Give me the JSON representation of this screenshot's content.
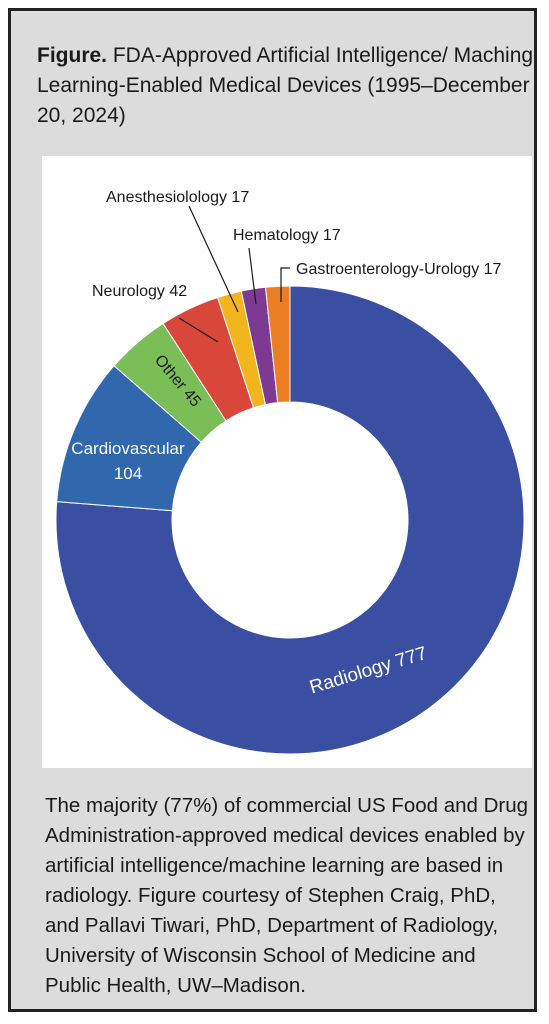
{
  "figure": {
    "prefix": "Figure.",
    "title": "FDA-Approved Artificial Intelligence/ Maching Learning-Enabled Medical Devices (1995–December 20, 2024)"
  },
  "chart_data": {
    "type": "pie",
    "donut": true,
    "colors": {
      "Radiology": "#3a4fa2",
      "Cardiovascular": "#3067ad",
      "Other": "#7bbd57",
      "Neurology": "#d9473b",
      "Anesthesiolology": "#f2b51e",
      "Hematology": "#7e3a93",
      "Gastroenterology-Urology": "#eb7e23"
    },
    "slices": [
      {
        "label": "Radiology",
        "value": 777,
        "text": "Radiology 777"
      },
      {
        "label": "Cardiovascular",
        "value": 104,
        "text": "Cardiovascular",
        "text2": "104"
      },
      {
        "label": "Other",
        "value": 45,
        "text": "Other 45"
      },
      {
        "label": "Neurology",
        "value": 42,
        "text": "Neurology 42"
      },
      {
        "label": "Anesthesiolology",
        "value": 17,
        "text": "Anesthesiolology 17"
      },
      {
        "label": "Hematology",
        "value": 17,
        "text": "Hematology 17"
      },
      {
        "label": "Gastroenterology-Urology",
        "value": 17,
        "text": "Gastroenterology-Urology 17"
      }
    ]
  },
  "body_text": "The majority (77%) of commercial US Food and Drug Administration-approved medical devices enabled by artificial intelligence/machine learning are based in radiology. Figure courtesy of Stephen Craig, PhD, and Pallavi Tiwari, PhD, Department of Radiology, University of Wisconsin School of Medicine and Public Health, UW–Madison."
}
